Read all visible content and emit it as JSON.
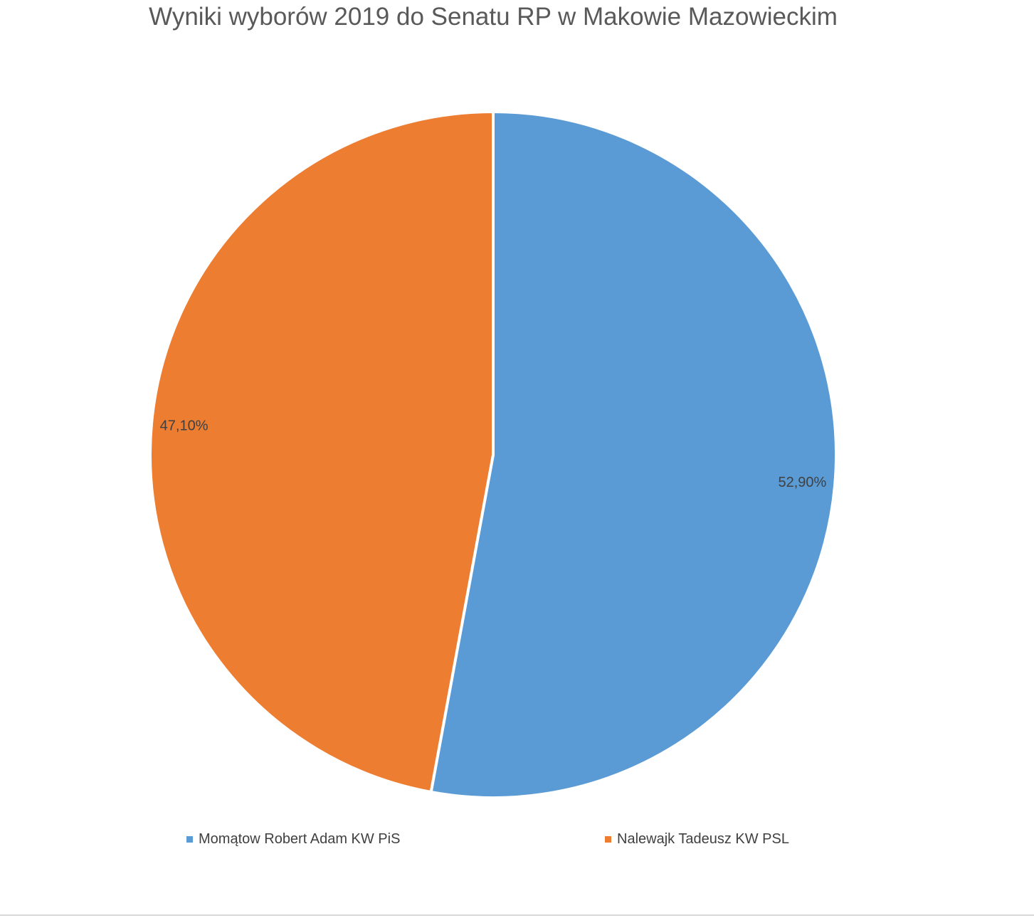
{
  "chart_data": {
    "type": "pie",
    "title": "Wyniki wyborów 2019 do Senatu RP w Makowie Mazowieckim",
    "slices": [
      {
        "label": "Momątow Robert Adam KW PiS",
        "value": 52.9,
        "display": "52,90%",
        "color": "#5b9bd5"
      },
      {
        "label": "Nalewajk Tadeusz KW PSL",
        "value": 47.1,
        "display": "47,10%",
        "color": "#ed7d31"
      }
    ],
    "legend_position": "bottom",
    "start_angle_deg": 0,
    "direction": "clockwise"
  }
}
